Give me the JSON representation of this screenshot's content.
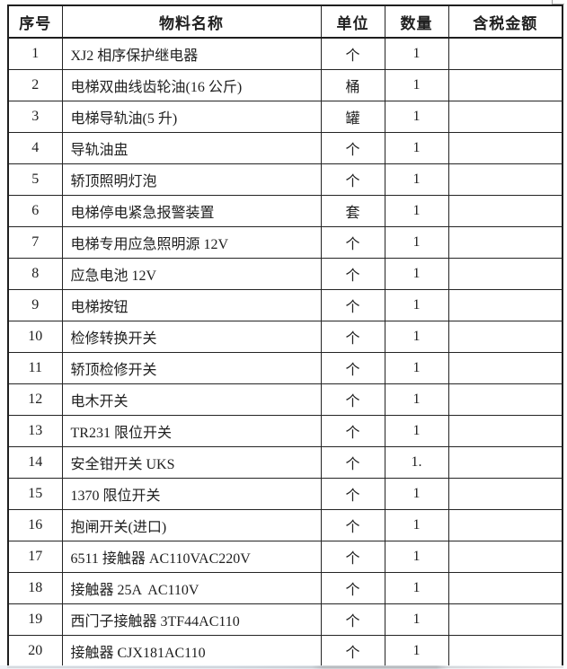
{
  "colors": {
    "border": "#1e1e1e",
    "text": "#202020",
    "background": "#ffffff"
  },
  "table": {
    "headers": [
      "序号",
      "物料名称",
      "单位",
      "数量",
      "含税金额"
    ],
    "rows": [
      {
        "no": "1",
        "name": "XJ2 相序保护继电器",
        "unit": "个",
        "qty": "1",
        "amount": ""
      },
      {
        "no": "2",
        "name": "电梯双曲线齿轮油(16 公斤)",
        "unit": "桶",
        "qty": "1",
        "amount": ""
      },
      {
        "no": "3",
        "name": "电梯导轨油(5 升)",
        "unit": "罐",
        "qty": "1",
        "amount": ""
      },
      {
        "no": "4",
        "name": "导轨油盅",
        "unit": "个",
        "qty": "1",
        "amount": ""
      },
      {
        "no": "5",
        "name": "轿顶照明灯泡",
        "unit": "个",
        "qty": "1",
        "amount": ""
      },
      {
        "no": "6",
        "name": "电梯停电紧急报警装置",
        "unit": "套",
        "qty": "1",
        "amount": ""
      },
      {
        "no": "7",
        "name": "电梯专用应急照明源 12V",
        "unit": "个",
        "qty": "1",
        "amount": ""
      },
      {
        "no": "8",
        "name": "应急电池 12V",
        "unit": "个",
        "qty": "1",
        "amount": ""
      },
      {
        "no": "9",
        "name": "电梯按钮",
        "unit": "个",
        "qty": "1",
        "amount": ""
      },
      {
        "no": "10",
        "name": "检修转换开关",
        "unit": "个",
        "qty": "1",
        "amount": ""
      },
      {
        "no": "11",
        "name": "轿顶检修开关",
        "unit": "个",
        "qty": "1",
        "amount": ""
      },
      {
        "no": "12",
        "name": "电木开关",
        "unit": "个",
        "qty": "1",
        "amount": ""
      },
      {
        "no": "13",
        "name": "TR231 限位开关",
        "unit": "个",
        "qty": "1",
        "amount": ""
      },
      {
        "no": "14",
        "name": "安全钳开关 UKS",
        "unit": "个",
        "qty": "1.",
        "amount": ""
      },
      {
        "no": "15",
        "name": "1370 限位开关",
        "unit": "个",
        "qty": "1",
        "amount": ""
      },
      {
        "no": "16",
        "name": "抱闸开关(进口)",
        "unit": "个",
        "qty": "1",
        "amount": ""
      },
      {
        "no": "17",
        "name": "6511 接触器 AC110VAC220V",
        "unit": "个",
        "qty": "1",
        "amount": ""
      },
      {
        "no": "18",
        "name": "接触器 25A  AC110V",
        "unit": "个",
        "qty": "1",
        "amount": ""
      },
      {
        "no": "19",
        "name": "西门子接触器 3TF44AC110",
        "unit": "个",
        "qty": "1",
        "amount": ""
      },
      {
        "no": "20",
        "name": "接触器 CJX181AC110",
        "unit": "个",
        "qty": "1",
        "amount": ""
      }
    ]
  }
}
